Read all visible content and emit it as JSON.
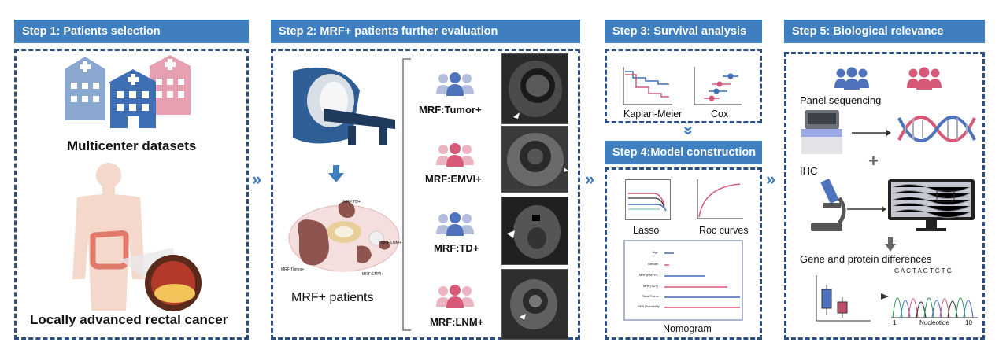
{
  "step1": {
    "header": "Step 1: Patients selection",
    "label_top": "Multicenter datasets",
    "label_bottom": "Locally advanced rectal cancer"
  },
  "step2": {
    "header": "Step 2: MRF+ patients further evaluation",
    "label_patients": "MRF+ patients",
    "groups": [
      "MRF:Tumor+",
      "MRF:EMVI+",
      "MRF:TD+",
      "MRF:LNM+"
    ],
    "tumor_labels": {
      "td": "MRF:TD+",
      "lnm": "MRF:LNM+",
      "tumor": "MRF:Tumor+",
      "emvi": "MRF:EMVI+"
    }
  },
  "step3": {
    "header": "Step 3: Survival analysis",
    "km": "Kaplan-Meier",
    "cox": "Cox"
  },
  "step4": {
    "header": "Step 4:Model construction",
    "lasso": "Lasso",
    "roc": "Roc curves",
    "nomogram": "Nomogram",
    "nomogram_rows": [
      "Age",
      "Gender",
      "MRF(EMVI+)",
      "MRF(TD+)",
      "Total Points",
      "DFS Probability"
    ]
  },
  "step5": {
    "header": "Step 5: Biological relevance",
    "panel": "Panel sequencing",
    "ihc": "IHC",
    "plus": "+",
    "gene": "Gene and protein differences",
    "seq": "G A C T A G T C T G",
    "axis_start": "1",
    "axis_label": "Nucleotide",
    "axis_end": "10"
  },
  "colors": {
    "blue": "#3f7fbf",
    "navy": "#2d4f80",
    "pink": "#d65a78",
    "lightblue": "#8aa7cf"
  }
}
